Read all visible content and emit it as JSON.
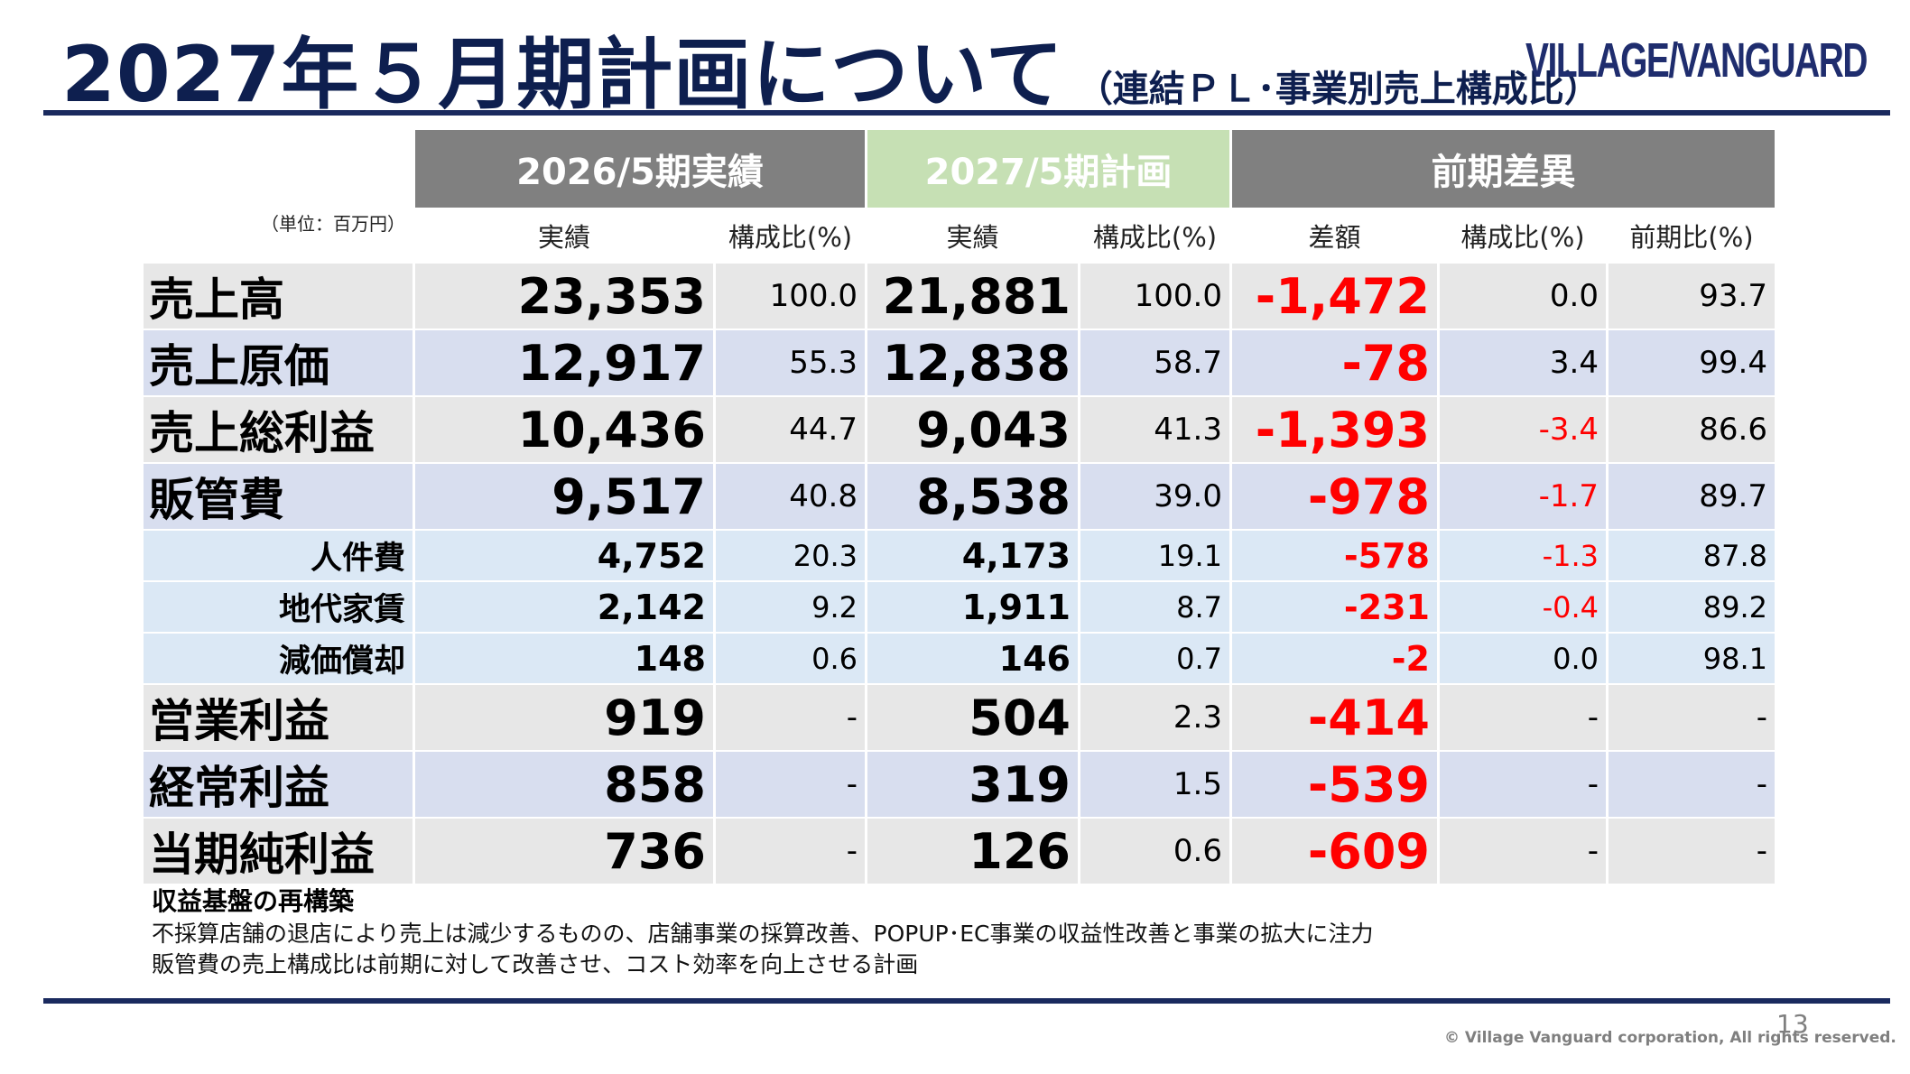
{
  "title": {
    "main": "2027年５月期計画について",
    "sub": "（連結ＰＬ･事業別売上構成比）"
  },
  "logo_text": "VILLAGE/VANGUARD",
  "table": {
    "groups": {
      "fy2026": "2026/5期実績",
      "fy2027": "2027/5期計画",
      "diff": "前期差異"
    },
    "unit": "（単位：百万円）",
    "subheaders": {
      "fy2026_amount": "実績",
      "fy2026_ratio": "構成比(%)",
      "fy2027_amount": "実績",
      "fy2027_ratio": "構成比(%)",
      "diff_amount": "差額",
      "diff_ratio": "構成比(%)",
      "diff_yoy": "前期比(%)"
    },
    "rows": [
      {
        "label": "売上高",
        "a26": "23,353",
        "r26": "100.0",
        "a27": "21,881",
        "r27": "100.0",
        "diff": "-1,472",
        "dratio": "0.0",
        "yoy": "93.7"
      },
      {
        "label": "売上原価",
        "a26": "12,917",
        "r26": "55.3",
        "a27": "12,838",
        "r27": "58.7",
        "diff": "-78",
        "dratio": "3.4",
        "yoy": "99.4"
      },
      {
        "label": "売上総利益",
        "a26": "10,436",
        "r26": "44.7",
        "a27": "9,043",
        "r27": "41.3",
        "diff": "-1,393",
        "dratio": "-3.4",
        "yoy": "86.6"
      },
      {
        "label": "販管費",
        "a26": "9,517",
        "r26": "40.8",
        "a27": "8,538",
        "r27": "39.0",
        "diff": "-978",
        "dratio": "-1.7",
        "yoy": "89.7"
      },
      {
        "label": "人件費",
        "a26": "4,752",
        "r26": "20.3",
        "a27": "4,173",
        "r27": "19.1",
        "diff": "-578",
        "dratio": "-1.3",
        "yoy": "87.8"
      },
      {
        "label": "地代家賃",
        "a26": "2,142",
        "r26": "9.2",
        "a27": "1,911",
        "r27": "8.7",
        "diff": "-231",
        "dratio": "-0.4",
        "yoy": "89.2"
      },
      {
        "label": "減価償却",
        "a26": "148",
        "r26": "0.6",
        "a27": "146",
        "r27": "0.7",
        "diff": "-2",
        "dratio": "0.0",
        "yoy": "98.1"
      },
      {
        "label": "営業利益",
        "a26": "919",
        "r26": "-",
        "a27": "504",
        "r27": "2.3",
        "diff": "-414",
        "dratio": "-",
        "yoy": "-"
      },
      {
        "label": "経常利益",
        "a26": "858",
        "r26": "-",
        "a27": "319",
        "r27": "1.5",
        "diff": "-539",
        "dratio": "-",
        "yoy": "-"
      },
      {
        "label": "当期純利益",
        "a26": "736",
        "r26": "-",
        "a27": "126",
        "r27": "0.6",
        "diff": "-609",
        "dratio": "-",
        "yoy": "-"
      }
    ]
  },
  "notes": {
    "heading": "収益基盤の再構築",
    "lines": [
      "不採算店舗の退店により売上は減少するものの、店舗事業の採算改善、POPUP･EC事業の収益性改善と事業の拡大に注力",
      "販管費の売上構成比は前期に対して改善させ、コスト効率を向上させる計画"
    ]
  },
  "footer": {
    "page_number": "13",
    "copyright": "© Village Vanguard corporation, All rights reserved."
  },
  "colors": {
    "title": "#0e1f4f",
    "header_gray": "#808080",
    "header_green": "#c6e0b4",
    "negative": "#ff0000"
  }
}
